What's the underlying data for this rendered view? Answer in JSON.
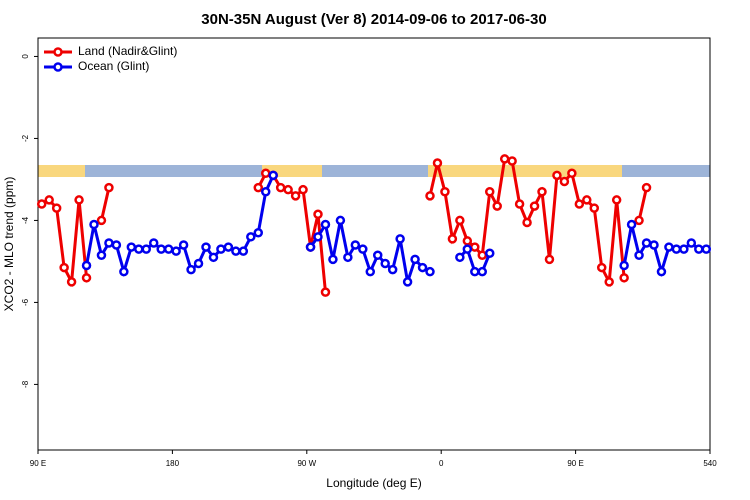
{
  "chart_data": {
    "type": "line",
    "title": "30N-35N August (Ver 8)   2014-09-06 to 2017-06-30",
    "x_label": "Longitude (deg E)",
    "y_label": "XCO2 - MLO trend (ppm)",
    "xlim": [
      90,
      540
    ],
    "xticks": [
      {
        "value": 90,
        "label": "90 E"
      },
      180,
      {
        "value": 270,
        "label": "90 W"
      },
      {
        "value": 360,
        "label": "0"
      },
      {
        "value": 450,
        "label": "90 E"
      },
      540
    ],
    "ylim": [
      -9.6,
      0.45
    ],
    "yticks": [
      0,
      -2,
      -4,
      -6,
      -8
    ],
    "legend": "top-left",
    "series": [
      {
        "name": "Land (Nadir&Glint)",
        "color": "#ee0000",
        "x": [
          92.5,
          97.5,
          102.5,
          107.5,
          112.5,
          117.5,
          122.5,
          127.5,
          132.5,
          137.5,
          142.5,
          237.5,
          242.5,
          247.5,
          252.5,
          257.5,
          262.5,
          267.5,
          272.5,
          277.5,
          282.5,
          287.5,
          352.5,
          357.5,
          362.5,
          367.5,
          372.5,
          377.5,
          382.5,
          387.5,
          392.5,
          397.5,
          402.5,
          407.5,
          412.5,
          417.5,
          422.5,
          427.5,
          432.5,
          437.5,
          442.5,
          447.5,
          452.5,
          457.5,
          462.5,
          467.5,
          472.5,
          477.5,
          482.5,
          487.5,
          492.5,
          497.5
        ],
        "values": [
          -3.6,
          -3.5,
          -3.7,
          -5.15,
          -5.5,
          -3.5,
          -5.4,
          null,
          -4.0,
          -3.2,
          null,
          -3.2,
          -2.85,
          -2.9,
          -3.2,
          -3.25,
          -3.4,
          -3.25,
          -4.65,
          -3.85,
          -5.75,
          null,
          -3.4,
          -2.6,
          -3.3,
          -4.45,
          -4.0,
          -4.5,
          -4.65,
          -4.85,
          -3.3,
          -3.65,
          -2.5,
          -2.55,
          -3.6,
          -4.05,
          -3.65,
          -3.3,
          -4.95,
          -2.9,
          -3.05,
          -2.85,
          -3.6,
          -3.5,
          -3.7,
          -5.15,
          -5.5,
          -3.5,
          -5.4,
          null,
          -4.0,
          -3.2
        ]
      },
      {
        "name": "Ocean (Glint)",
        "color": "#0000ee",
        "x": [
          122.5,
          127.5,
          132.5,
          137.5,
          142.5,
          147.5,
          152.5,
          157.5,
          162.5,
          167.5,
          172.5,
          177.5,
          182.5,
          187.5,
          192.5,
          197.5,
          202.5,
          207.5,
          212.5,
          217.5,
          222.5,
          227.5,
          232.5,
          237.5,
          242.5,
          247.5,
          252.5,
          272.5,
          277.5,
          282.5,
          287.5,
          292.5,
          297.5,
          302.5,
          307.5,
          312.5,
          317.5,
          322.5,
          327.5,
          332.5,
          337.5,
          342.5,
          347.5,
          352.5,
          357.5,
          372.5,
          377.5,
          382.5,
          387.5,
          392.5,
          397.5,
          482.5,
          487.5,
          492.5,
          497.5,
          502.5,
          507.5,
          512.5,
          517.5,
          522.5,
          527.5,
          532.5,
          537.5
        ],
        "values": [
          -5.1,
          -4.1,
          -4.85,
          -4.55,
          -4.6,
          -5.25,
          -4.65,
          -4.7,
          -4.7,
          -4.55,
          -4.7,
          -4.7,
          -4.75,
          -4.6,
          -5.2,
          -5.05,
          -4.65,
          -4.9,
          -4.7,
          -4.65,
          -4.75,
          -4.75,
          -4.4,
          -4.3,
          -3.3,
          -2.9,
          null,
          -4.65,
          -4.4,
          -4.1,
          -4.95,
          -4.0,
          -4.9,
          -4.6,
          -4.7,
          -5.25,
          -4.85,
          -5.05,
          -5.2,
          -4.45,
          -5.5,
          -4.95,
          -5.15,
          -5.25,
          null,
          -4.9,
          -4.7,
          -5.25,
          -5.25,
          -4.8,
          null,
          -5.1,
          -4.1,
          -4.85,
          -4.55,
          -4.6,
          -5.25,
          -4.65,
          -4.7,
          -4.7,
          -4.55,
          -4.7,
          -4.7
        ]
      }
    ]
  }
}
